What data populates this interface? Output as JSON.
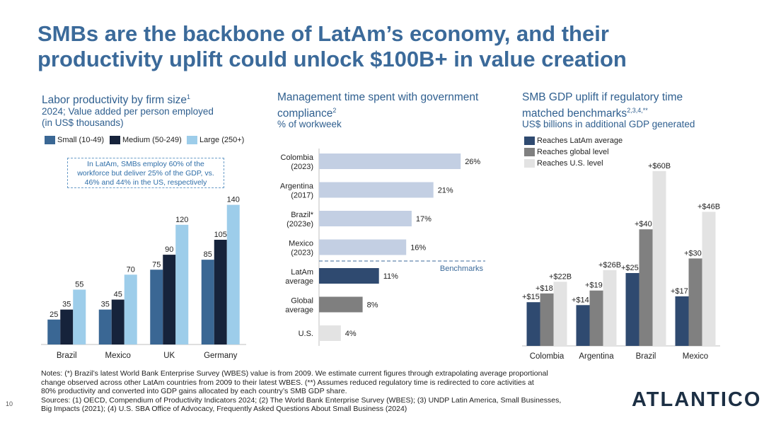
{
  "title_line1": "SMBs are the backbone of LatAm’s economy, and their",
  "title_line2": "productivity uplift could unlock $100B+ in value creation",
  "colors": {
    "small": "#3a6794",
    "medium": "#16233b",
    "large": "#9dcdea",
    "govt_bar": "#c3cfe3",
    "latam_bar": "#2f4a70",
    "global_bar": "#7f7f7f",
    "us_bar": "#e3e3e3",
    "reaches_latam": "#2f4a70",
    "reaches_global": "#808080",
    "reaches_us": "#e3e3e3"
  },
  "panel1": {
    "title": "Labor productivity by firm size",
    "title_sup": "1",
    "sub1": "2024; Value added per person employed",
    "sub2": "(in US$ thousands)",
    "callout1": "In LatAm, SMBs employ 60% of the",
    "callout2": "workforce but deliver 25% of the GDP, vs.",
    "callout3": "46% and 44% in the US, respectively"
  },
  "panel2": {
    "title1": "Management time spent with government",
    "title2": "compliance",
    "title_sup": "2",
    "sub": "% of workweek",
    "benchmarks_label": "Benchmarks"
  },
  "panel3": {
    "title1": "SMB GDP uplift if regulatory time",
    "title2": "matched benchmarks",
    "title_sup": "2,3,4,**",
    "sub": "US$ billions in additional GDP generated"
  },
  "chart_data": [
    {
      "type": "bar",
      "title": "Labor productivity by firm size",
      "categories": [
        "Brazil",
        "Mexico",
        "UK",
        "Germany"
      ],
      "series": [
        {
          "name": "Small (10-49)",
          "values": [
            25,
            35,
            75,
            85
          ]
        },
        {
          "name": "Medium (50-249)",
          "values": [
            35,
            45,
            90,
            105
          ]
        },
        {
          "name": "Large (250+)",
          "values": [
            55,
            70,
            120,
            140
          ]
        }
      ],
      "ylim": [
        0,
        150
      ],
      "legend": "top"
    },
    {
      "type": "bar",
      "orientation": "horizontal",
      "title": "Management time spent with government compliance",
      "categories": [
        [
          "Colombia",
          "(2023)"
        ],
        [
          "Argentina",
          "(2017)"
        ],
        [
          "Brazil*",
          "(2023e)"
        ],
        [
          "Mexico",
          "(2023)"
        ],
        [
          "LatAm",
          "average"
        ],
        [
          "Global",
          "average"
        ],
        [
          "U.S."
        ]
      ],
      "values": [
        26,
        21,
        17,
        16,
        11,
        8,
        4
      ],
      "value_labels": [
        "26%",
        "21%",
        "17%",
        "16%",
        "11%",
        "8%",
        "4%"
      ],
      "xlim": [
        0,
        32
      ]
    },
    {
      "type": "bar",
      "title": "SMB GDP uplift if regulatory time matched benchmarks",
      "categories": [
        "Colombia",
        "Argentina",
        "Brazil",
        "Mexico"
      ],
      "series": [
        {
          "name": "Reaches LatAm average",
          "values": [
            15,
            14,
            25,
            17
          ],
          "labels": [
            "+$15B",
            "+$14B",
            "+$25B",
            "+$17B"
          ]
        },
        {
          "name": "Reaches global level",
          "values": [
            18,
            19,
            40,
            30
          ],
          "labels": [
            "+$18B",
            "+$19B",
            "+$40B",
            "+$30B"
          ]
        },
        {
          "name": "Reaches U.S. level",
          "values": [
            22,
            26,
            60,
            46
          ],
          "labels": [
            "+$22B",
            "+$26B",
            "+$60B",
            "+$46B"
          ]
        }
      ],
      "ylim": [
        0,
        65
      ],
      "legend": "top-left"
    }
  ],
  "notes": {
    "line1": "Notes: (*) Brazil’s latest World Bank Enterprise Survey (WBES) value is from 2009. We estimate current figures through extrapolating average proportional",
    "line2": "change observed across other LatAm countries from 2009 to their latest WBES. (**) Assumes reduced regulatory time is redirected to core activities at",
    "line3": "80% productivity and converted into GDP gains allocated by each country’s SMB GDP share.",
    "line4": "Sources: (1) OECD, Compendium of Productivity Indicators 2024; (2) The World Bank Enterprise Survey (WBES); (3) UNDP Latin America, Small Businesses,",
    "line5": "Big Impacts (2021); (4) U.S. SBA Office of Advocacy, Frequently Asked Questions About Small Business (2024)"
  },
  "logo_text": "ATLANTICO",
  "page_number": "10"
}
